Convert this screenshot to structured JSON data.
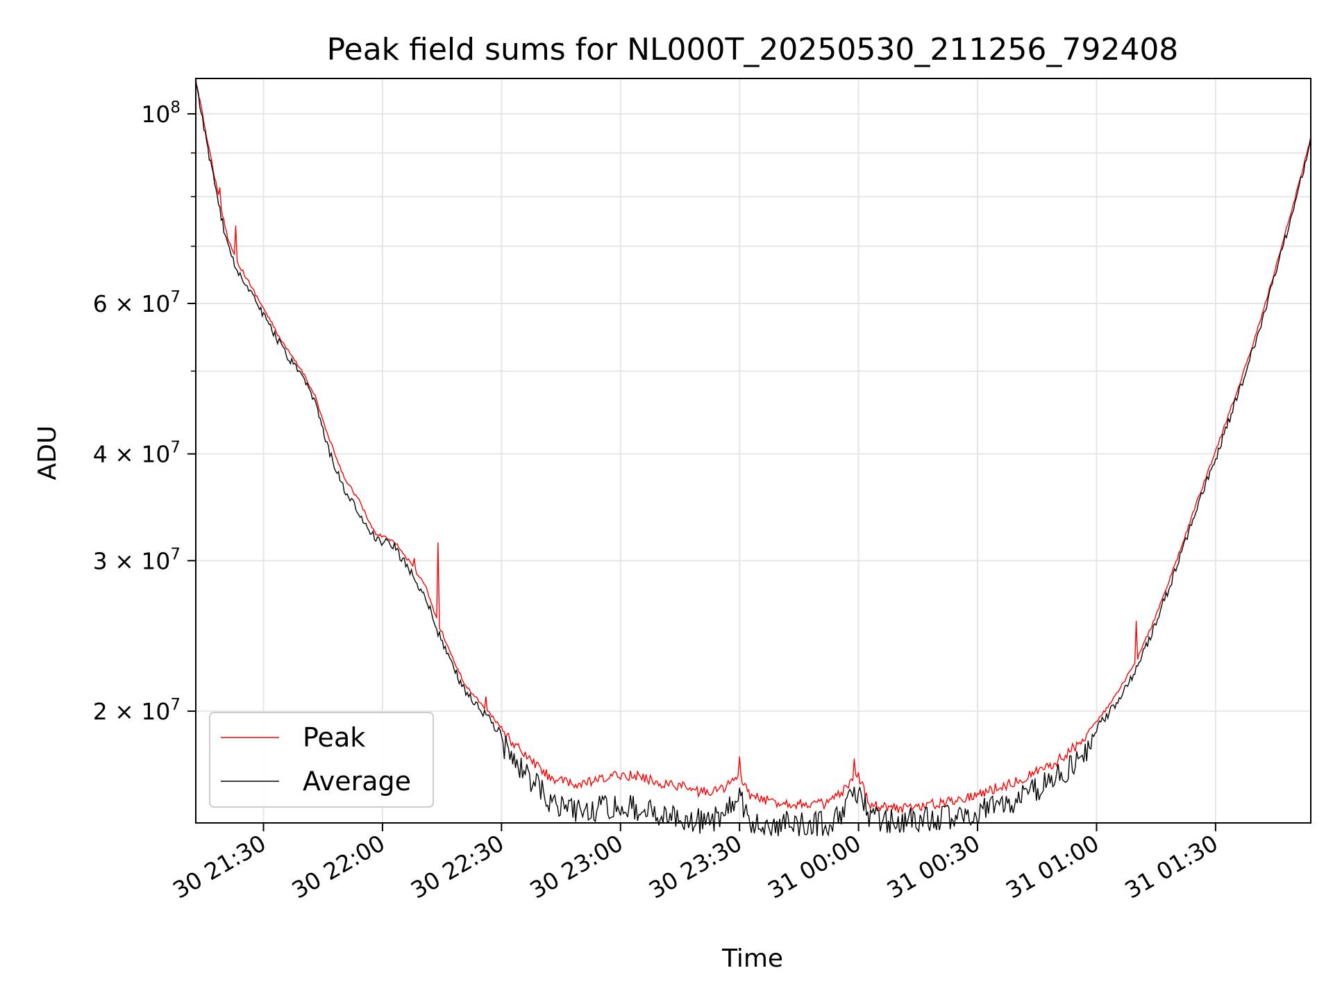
{
  "chart_data": {
    "type": "line",
    "title": "Peak field sums for NL000T_20250530_211256_792408",
    "xlabel": "Time",
    "ylabel": "ADU",
    "y_scale": "log",
    "grid": true,
    "legend_position": "lower-left",
    "colors": {
      "Peak": "#ff0000",
      "Average": "#000000",
      "grid": "#e6e6e6"
    },
    "x_range": [
      "2025-05-30 21:12:56",
      "2025-05-31 01:54:00"
    ],
    "ylim": [
      14800000,
      110000000
    ],
    "x_ticks": [
      {
        "time": "2025-05-30 21:30",
        "label": "30 21:30"
      },
      {
        "time": "2025-05-30 22:00",
        "label": "30 22:00"
      },
      {
        "time": "2025-05-30 22:30",
        "label": "30 22:30"
      },
      {
        "time": "2025-05-30 23:00",
        "label": "30 23:00"
      },
      {
        "time": "2025-05-30 23:30",
        "label": "30 23:30"
      },
      {
        "time": "2025-05-31 00:00",
        "label": "31 00:00"
      },
      {
        "time": "2025-05-31 00:30",
        "label": "31 00:30"
      },
      {
        "time": "2025-05-31 01:00",
        "label": "31 01:00"
      },
      {
        "time": "2025-05-31 01:30",
        "label": "31 01:30"
      }
    ],
    "y_ticks": [
      {
        "value": 20000000,
        "base": "2 × 10",
        "exp": "7"
      },
      {
        "value": 30000000,
        "base": "3 × 10",
        "exp": "7"
      },
      {
        "value": 40000000,
        "base": "4 × 10",
        "exp": "7"
      },
      {
        "value": 60000000,
        "base": "6 × 10",
        "exp": "7"
      },
      {
        "value": 100000000,
        "base": "10",
        "exp": "8"
      }
    ],
    "y_minor_ticks": [
      50000000,
      70000000,
      80000000,
      90000000
    ],
    "series": [
      {
        "name": "Peak",
        "x": [
          "2025-05-30 21:12:56",
          "2025-05-30 21:16",
          "2025-05-30 21:19",
          "2025-05-30 21:21",
          "2025-05-30 21:23",
          "2025-05-30 21:27",
          "2025-05-30 21:30",
          "2025-05-30 21:35",
          "2025-05-30 21:40",
          "2025-05-30 21:43",
          "2025-05-30 21:46",
          "2025-05-30 21:50",
          "2025-05-30 21:54",
          "2025-05-30 21:58",
          "2025-05-30 22:03",
          "2025-05-30 22:08",
          "2025-05-30 22:11",
          "2025-05-30 22:14",
          "2025-05-30 22:18",
          "2025-05-30 22:21",
          "2025-05-30 22:25",
          "2025-05-30 22:30",
          "2025-05-30 22:36",
          "2025-05-30 22:42",
          "2025-05-30 22:48",
          "2025-05-30 22:54",
          "2025-05-30 23:00",
          "2025-05-30 23:05",
          "2025-05-30 23:10",
          "2025-05-30 23:15",
          "2025-05-30 23:20",
          "2025-05-30 23:25",
          "2025-05-30 23:30",
          "2025-05-30 23:33",
          "2025-05-30 23:38",
          "2025-05-30 23:45",
          "2025-05-30 23:52",
          "2025-05-30 23:56",
          "2025-05-31 00:00",
          "2025-05-31 00:03",
          "2025-05-31 00:10",
          "2025-05-31 00:20",
          "2025-05-31 00:30",
          "2025-05-31 00:40",
          "2025-05-31 00:50",
          "2025-05-31 00:55",
          "2025-05-31 01:00",
          "2025-05-31 01:05",
          "2025-05-31 01:10",
          "2025-05-31 01:15",
          "2025-05-31 01:20",
          "2025-05-31 01:25",
          "2025-05-31 01:30",
          "2025-05-31 01:35",
          "2025-05-31 01:40",
          "2025-05-31 01:45",
          "2025-05-31 01:50",
          "2025-05-31 01:54"
        ],
        "y": [
          110000000,
          93000000,
          79000000,
          72000000,
          68000000,
          63000000,
          59500000,
          54000000,
          50000000,
          47000000,
          42500000,
          38000000,
          35500000,
          32500000,
          31800000,
          29500000,
          28000000,
          25500000,
          23000000,
          21500000,
          20500000,
          19200000,
          18000000,
          17000000,
          16600000,
          16800000,
          17100000,
          17000000,
          16700000,
          16600000,
          16300000,
          16400000,
          17000000,
          16100000,
          15900000,
          15800000,
          15800000,
          16300000,
          17000000,
          15800000,
          15600000,
          15800000,
          16200000,
          16800000,
          17700000,
          18500000,
          19500000,
          21000000,
          23000000,
          26000000,
          30000000,
          35000000,
          40500000,
          47000000,
          55000000,
          66000000,
          80000000,
          94000000
        ],
        "spikes": [
          {
            "x": "2025-05-30 21:19",
            "y": 82000000
          },
          {
            "x": "2025-05-30 21:23",
            "y": 74000000
          },
          {
            "x": "2025-05-30 22:08",
            "y": 30200000
          },
          {
            "x": "2025-05-30 22:14",
            "y": 31500000
          },
          {
            "x": "2025-05-30 22:26",
            "y": 20800000
          },
          {
            "x": "2025-05-30 23:30",
            "y": 17700000
          },
          {
            "x": "2025-05-30 23:59",
            "y": 17600000
          },
          {
            "x": "2025-05-31 01:10",
            "y": 25500000
          }
        ]
      },
      {
        "name": "Average",
        "x": [
          "2025-05-30 21:12:56",
          "2025-05-30 21:16",
          "2025-05-30 21:19",
          "2025-05-30 21:21",
          "2025-05-30 21:23",
          "2025-05-30 21:27",
          "2025-05-30 21:30",
          "2025-05-30 21:35",
          "2025-05-30 21:40",
          "2025-05-30 21:43",
          "2025-05-30 21:46",
          "2025-05-30 21:50",
          "2025-05-30 21:54",
          "2025-05-30 21:58",
          "2025-05-30 22:03",
          "2025-05-30 22:08",
          "2025-05-30 22:11",
          "2025-05-30 22:14",
          "2025-05-30 22:18",
          "2025-05-30 22:21",
          "2025-05-30 22:25",
          "2025-05-30 22:30",
          "2025-05-30 22:36",
          "2025-05-30 22:42",
          "2025-05-30 22:48",
          "2025-05-30 22:54",
          "2025-05-30 23:00",
          "2025-05-30 23:05",
          "2025-05-30 23:10",
          "2025-05-30 23:15",
          "2025-05-30 23:20",
          "2025-05-30 23:25",
          "2025-05-30 23:30",
          "2025-05-30 23:33",
          "2025-05-30 23:38",
          "2025-05-30 23:45",
          "2025-05-30 23:52",
          "2025-05-30 23:56",
          "2025-05-31 00:00",
          "2025-05-31 00:03",
          "2025-05-31 00:10",
          "2025-05-31 00:20",
          "2025-05-31 00:30",
          "2025-05-31 00:40",
          "2025-05-31 00:50",
          "2025-05-31 00:55",
          "2025-05-31 01:00",
          "2025-05-31 01:05",
          "2025-05-31 01:10",
          "2025-05-31 01:15",
          "2025-05-31 01:20",
          "2025-05-31 01:25",
          "2025-05-31 01:30",
          "2025-05-31 01:35",
          "2025-05-31 01:40",
          "2025-05-31 01:45",
          "2025-05-31 01:50",
          "2025-05-31 01:54"
        ],
        "y": [
          110000000,
          92000000,
          78000000,
          71000000,
          67000000,
          62500000,
          59000000,
          53500000,
          49500000,
          46500000,
          41500000,
          37000000,
          34500000,
          32300000,
          31500000,
          29000000,
          27500000,
          25000000,
          22700000,
          21300000,
          20300000,
          19000000,
          17500000,
          16300000,
          15900000,
          15900000,
          16100000,
          15900000,
          15700000,
          15600000,
          15400000,
          15500000,
          16400000,
          15300000,
          15300000,
          15300000,
          15300000,
          15800000,
          16700000,
          15500000,
          15400000,
          15500000,
          15800000,
          16300000,
          17300000,
          18100000,
          19300000,
          20700000,
          22700000,
          25700000,
          29700000,
          34700000,
          40000000,
          46500000,
          54500000,
          65500000,
          79500000,
          94000000
        ]
      }
    ]
  }
}
